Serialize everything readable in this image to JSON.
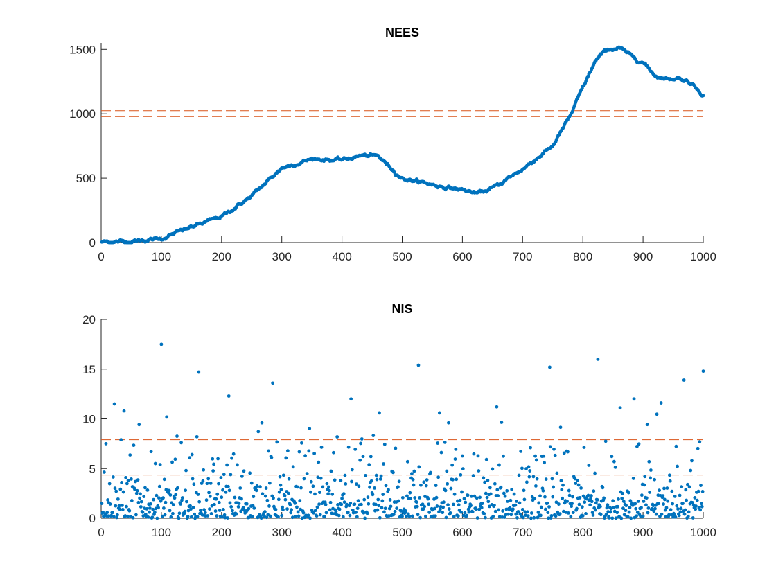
{
  "colors": {
    "data": "#0072BD",
    "bound": "#D95319",
    "axis": "#262626"
  },
  "chart_data": [
    {
      "type": "scatter",
      "title": "NEES",
      "xlabel": "",
      "ylabel": "",
      "xlim": [
        0,
        1000
      ],
      "ylim": [
        0,
        1550
      ],
      "xticks": [
        0,
        100,
        200,
        300,
        400,
        500,
        600,
        700,
        800,
        900,
        1000
      ],
      "yticks": [
        0,
        500,
        1000,
        1500
      ],
      "grid": false,
      "series": [
        {
          "marker": "dot",
          "points_n": 1000,
          "trend_x": [
            0,
            50,
            100,
            150,
            200,
            250,
            300,
            350,
            400,
            430,
            460,
            500,
            560,
            600,
            625,
            650,
            700,
            750,
            780,
            800,
            820,
            840,
            860,
            880,
            900,
            920,
            940,
            960,
            980,
            1000
          ],
          "trend_y": [
            5,
            10,
            30,
            120,
            200,
            360,
            580,
            650,
            640,
            675,
            670,
            500,
            440,
            410,
            380,
            420,
            570,
            750,
            990,
            1200,
            1400,
            1500,
            1510,
            1450,
            1400,
            1300,
            1270,
            1280,
            1240,
            1150
          ]
        }
      ],
      "hlines": [
        {
          "y": 1024,
          "style": "dashed"
        },
        {
          "y": 978,
          "style": "dashed"
        }
      ]
    },
    {
      "type": "scatter",
      "title": "NIS",
      "xlabel": "",
      "ylabel": "",
      "xlim": [
        0,
        1000
      ],
      "ylim": [
        0,
        20
      ],
      "xticks": [
        0,
        100,
        200,
        300,
        400,
        500,
        600,
        700,
        800,
        900,
        1000
      ],
      "yticks": [
        0,
        5,
        10,
        15,
        20
      ],
      "grid": false,
      "series": [
        {
          "marker": "dot",
          "points_n": 1000,
          "distribution": "chi-square, 2 dof",
          "outliers_x": [
            8,
            22,
            38,
            100,
            162,
            212,
            267,
            285,
            415,
            462,
            527,
            562,
            577,
            657,
            745,
            825,
            862,
            885,
            930,
            968,
            1000
          ],
          "outliers_y": [
            7.5,
            11.5,
            10.8,
            17.5,
            14.7,
            12.3,
            9.6,
            13.6,
            12.0,
            10.6,
            15.4,
            10.6,
            9.6,
            11.2,
            15.2,
            16.0,
            11.1,
            12.0,
            11.6,
            13.9,
            14.8
          ]
        }
      ],
      "hlines": [
        {
          "y": 7.9,
          "style": "dashed"
        },
        {
          "y": 4.35,
          "style": "dashed"
        }
      ]
    }
  ]
}
